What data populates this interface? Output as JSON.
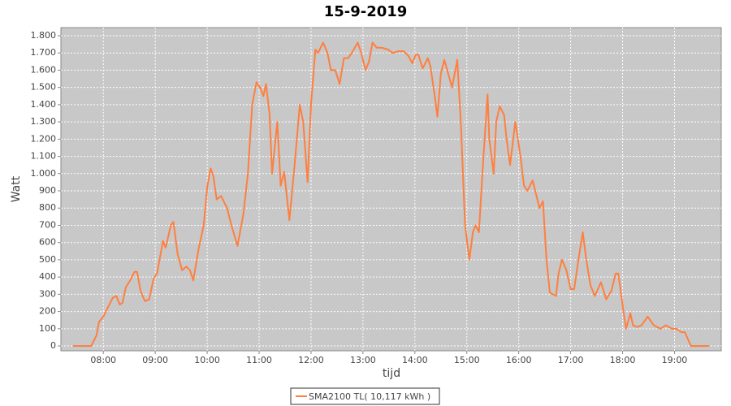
{
  "chart_data": {
    "type": "line",
    "title": "15-9-2019",
    "x_label": "tijd",
    "y_label": "Watt",
    "xlim": [
      "07:11",
      "19:54"
    ],
    "xticks": [
      "08:00",
      "09:00",
      "10:00",
      "11:00",
      "12:00",
      "13:00",
      "14:00",
      "15:00",
      "16:00",
      "17:00",
      "18:00",
      "19:00"
    ],
    "ylim": [
      -28,
      1847
    ],
    "yticks": [
      0,
      100,
      200,
      300,
      400,
      500,
      600,
      700,
      800,
      900,
      {
        "value": 1000,
        "label": "1.000"
      },
      {
        "value": 1100,
        "label": "1.100"
      },
      {
        "value": 1200,
        "label": "1.200"
      },
      {
        "value": 1300,
        "label": "1.300"
      },
      {
        "value": 1400,
        "label": "1.400"
      },
      {
        "value": 1500,
        "label": "1.500"
      },
      {
        "value": 1600,
        "label": "1.600"
      },
      {
        "value": 1700,
        "label": "1.700"
      },
      {
        "value": 1800,
        "label": "1.800"
      }
    ],
    "grid": true,
    "legend": "bottom",
    "x": [
      "07:25",
      "07:46",
      "07:52",
      "07:55",
      "08:00",
      "08:06",
      "08:11",
      "08:15",
      "08:19",
      "08:22",
      "08:26",
      "08:31",
      "08:36",
      "08:39",
      "08:43",
      "08:48",
      "08:53",
      "08:58",
      "09:02",
      "09:09",
      "09:12",
      "09:18",
      "09:21",
      "09:26",
      "09:31",
      "09:36",
      "09:40",
      "09:44",
      "09:50",
      "09:56",
      "10:00",
      "10:04",
      "10:07",
      "10:11",
      "10:16",
      "10:23",
      "10:28",
      "10:35",
      "10:42",
      "10:47",
      "10:52",
      "10:57",
      "11:01",
      "11:05",
      "11:08",
      "11:12",
      "11:15",
      "11:21",
      "11:25",
      "11:29",
      "11:35",
      "11:41",
      "11:47",
      "11:51",
      "11:56",
      "12:00",
      "12:05",
      "12:08",
      "12:14",
      "12:19",
      "12:23",
      "12:28",
      "12:33",
      "12:38",
      "12:43",
      "12:47",
      "12:54",
      "12:58",
      "13:03",
      "13:07",
      "13:11",
      "13:16",
      "13:22",
      "13:29",
      "13:34",
      "13:41",
      "13:47",
      "13:53",
      "13:57",
      "14:01",
      "14:04",
      "14:09",
      "14:15",
      "14:18",
      "14:23",
      "14:26",
      "14:30",
      "14:34",
      "14:39",
      "14:43",
      "14:49",
      "14:53",
      "14:58",
      "15:03",
      "15:07",
      "15:10",
      "15:14",
      "15:18",
      "15:24",
      "15:26",
      "15:31",
      "15:34",
      "15:38",
      "15:43",
      "15:46",
      "15:50",
      "15:56",
      "16:02",
      "16:06",
      "16:10",
      "16:16",
      "16:20",
      "16:24",
      "16:28",
      "16:32",
      "16:36",
      "16:43",
      "16:46",
      "16:50",
      "16:55",
      "17:00",
      "17:04",
      "17:09",
      "17:14",
      "17:18",
      "17:23",
      "17:28",
      "17:35",
      "17:41",
      "17:47",
      "17:52",
      "17:55",
      "18:01",
      "18:04",
      "18:09",
      "18:12",
      "18:17",
      "18:22",
      "18:29",
      "18:36",
      "18:44",
      "18:50",
      "18:57",
      "19:02",
      "19:08",
      "19:12",
      "19:19",
      "19:40"
    ],
    "series": [
      {
        "name": "SMA2100 TL( 10,117 kWh )",
        "color": "#ff7f3f",
        "values": [
          0,
          0,
          60,
          140,
          170,
          230,
          280,
          290,
          240,
          250,
          340,
          380,
          430,
          430,
          320,
          260,
          270,
          390,
          420,
          610,
          570,
          700,
          720,
          530,
          440,
          460,
          440,
          380,
          560,
          700,
          920,
          1030,
          990,
          850,
          870,
          800,
          700,
          580,
          770,
          1000,
          1400,
          1530,
          1500,
          1450,
          1520,
          1350,
          1000,
          1300,
          930,
          1010,
          730,
          1050,
          1400,
          1300,
          950,
          1400,
          1720,
          1700,
          1760,
          1700,
          1600,
          1600,
          1520,
          1670,
          1670,
          1700,
          1760,
          1700,
          1600,
          1650,
          1760,
          1730,
          1730,
          1720,
          1700,
          1710,
          1710,
          1680,
          1640,
          1690,
          1690,
          1610,
          1670,
          1620,
          1450,
          1330,
          1580,
          1660,
          1570,
          1500,
          1660,
          1300,
          700,
          500,
          660,
          700,
          660,
          1000,
          1460,
          1200,
          1000,
          1300,
          1390,
          1340,
          1200,
          1050,
          1300,
          1100,
          930,
          900,
          960,
          880,
          800,
          840,
          500,
          310,
          290,
          420,
          500,
          440,
          330,
          330,
          500,
          660,
          500,
          350,
          290,
          370,
          270,
          320,
          420,
          420,
          200,
          100,
          190,
          120,
          110,
          120,
          170,
          120,
          100,
          120,
          100,
          100,
          80,
          80,
          0,
          0
        ]
      }
    ]
  }
}
